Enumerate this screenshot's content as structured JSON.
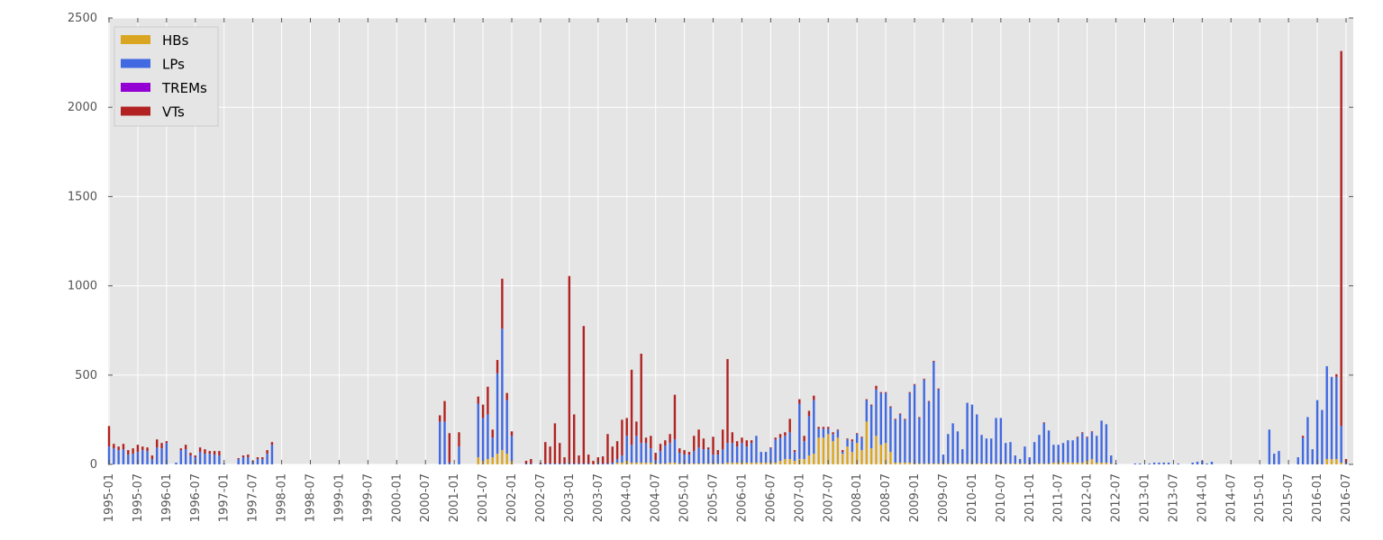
{
  "chart_data": {
    "type": "bar",
    "stacked": true,
    "grid": true,
    "legend_position": "top-left",
    "title": "",
    "xlabel": "",
    "ylabel": "",
    "ylim": [
      0,
      2500
    ],
    "yticks": [
      0,
      500,
      1000,
      1500,
      2000,
      2500
    ],
    "xlim": [
      "1995-01",
      "2016-07"
    ],
    "xticks": [
      "1995-01",
      "1995-07",
      "1996-01",
      "1996-07",
      "1997-01",
      "1997-07",
      "1998-01",
      "1998-07",
      "1999-01",
      "1999-07",
      "2000-01",
      "2000-07",
      "2001-01",
      "2001-07",
      "2002-01",
      "2002-07",
      "2003-01",
      "2003-07",
      "2004-01",
      "2004-07",
      "2005-01",
      "2005-07",
      "2006-01",
      "2006-07",
      "2007-01",
      "2007-07",
      "2008-01",
      "2008-07",
      "2009-01",
      "2009-07",
      "2010-01",
      "2010-07",
      "2011-01",
      "2011-07",
      "2012-01",
      "2012-07",
      "2013-01",
      "2013-07",
      "2014-01",
      "2014-07",
      "2015-01",
      "2015-07",
      "2016-01",
      "2016-07"
    ],
    "series": [
      {
        "name": "HBs",
        "color": "#daa520"
      },
      {
        "name": "LPs",
        "color": "#4169e1"
      },
      {
        "name": "TREMs",
        "color": "#9400d3"
      },
      {
        "name": "VTs",
        "color": "#b22222"
      }
    ],
    "data": [
      [
        "1995-01",
        0,
        100,
        0,
        115
      ],
      [
        "1995-02",
        0,
        90,
        0,
        25
      ],
      [
        "1995-03",
        0,
        80,
        0,
        20
      ],
      [
        "1995-04",
        0,
        85,
        0,
        30
      ],
      [
        "1995-05",
        0,
        55,
        0,
        25
      ],
      [
        "1995-06",
        0,
        60,
        0,
        30
      ],
      [
        "1995-07",
        0,
        70,
        0,
        40
      ],
      [
        "1995-08",
        0,
        80,
        0,
        20
      ],
      [
        "1995-09",
        0,
        75,
        0,
        20
      ],
      [
        "1995-10",
        0,
        30,
        0,
        20
      ],
      [
        "1995-11",
        0,
        95,
        0,
        45
      ],
      [
        "1995-12",
        0,
        90,
        0,
        30
      ],
      [
        "1996-01",
        0,
        120,
        0,
        10
      ],
      [
        "1996-03",
        0,
        10,
        0,
        0
      ],
      [
        "1996-04",
        0,
        80,
        0,
        10
      ],
      [
        "1996-05",
        0,
        85,
        0,
        25
      ],
      [
        "1996-06",
        0,
        50,
        0,
        15
      ],
      [
        "1996-07",
        0,
        40,
        0,
        10
      ],
      [
        "1996-08",
        0,
        70,
        0,
        25
      ],
      [
        "1996-09",
        0,
        60,
        0,
        25
      ],
      [
        "1996-10",
        0,
        60,
        0,
        15
      ],
      [
        "1996-11",
        0,
        55,
        0,
        20
      ],
      [
        "1996-12",
        0,
        50,
        0,
        25
      ],
      [
        "1997-01",
        0,
        5,
        0,
        0
      ],
      [
        "1997-04",
        0,
        30,
        0,
        5
      ],
      [
        "1997-05",
        0,
        40,
        0,
        10
      ],
      [
        "1997-06",
        0,
        40,
        0,
        15
      ],
      [
        "1997-07",
        0,
        15,
        0,
        5
      ],
      [
        "1997-08",
        0,
        30,
        0,
        10
      ],
      [
        "1997-09",
        0,
        30,
        0,
        10
      ],
      [
        "1997-10",
        0,
        60,
        0,
        20
      ],
      [
        "1997-11",
        0,
        110,
        0,
        15
      ],
      [
        "2000-10",
        0,
        240,
        0,
        35
      ],
      [
        "2000-11",
        0,
        240,
        0,
        115
      ],
      [
        "2000-12",
        0,
        10,
        0,
        165
      ],
      [
        "2001-02",
        0,
        100,
        0,
        80
      ],
      [
        "2001-06",
        40,
        300,
        0,
        40
      ],
      [
        "2001-07",
        20,
        240,
        0,
        75
      ],
      [
        "2001-08",
        30,
        250,
        0,
        155
      ],
      [
        "2001-09",
        40,
        110,
        0,
        45
      ],
      [
        "2001-10",
        60,
        450,
        0,
        75
      ],
      [
        "2001-11",
        80,
        680,
        0,
        280
      ],
      [
        "2001-12",
        60,
        300,
        0,
        40
      ],
      [
        "2002-01",
        20,
        140,
        0,
        25
      ],
      [
        "2002-04",
        0,
        5,
        0,
        15
      ],
      [
        "2002-05",
        0,
        5,
        0,
        25
      ],
      [
        "2002-07",
        0,
        5,
        0,
        5
      ],
      [
        "2002-08",
        0,
        5,
        0,
        120
      ],
      [
        "2002-09",
        0,
        5,
        0,
        95
      ],
      [
        "2002-10",
        0,
        5,
        0,
        225
      ],
      [
        "2002-11",
        0,
        5,
        0,
        115
      ],
      [
        "2002-12",
        0,
        5,
        0,
        35
      ],
      [
        "2003-01",
        0,
        5,
        0,
        1050
      ],
      [
        "2003-02",
        0,
        5,
        0,
        275
      ],
      [
        "2003-03",
        0,
        5,
        0,
        45
      ],
      [
        "2003-04",
        0,
        5,
        0,
        770
      ],
      [
        "2003-05",
        0,
        5,
        0,
        50
      ],
      [
        "2003-06",
        0,
        0,
        0,
        20
      ],
      [
        "2003-07",
        0,
        5,
        0,
        35
      ],
      [
        "2003-08",
        0,
        5,
        0,
        40
      ],
      [
        "2003-09",
        0,
        5,
        0,
        165
      ],
      [
        "2003-10",
        0,
        10,
        0,
        90
      ],
      [
        "2003-11",
        10,
        20,
        0,
        100
      ],
      [
        "2003-12",
        10,
        40,
        0,
        200
      ],
      [
        "2004-01",
        20,
        140,
        0,
        100
      ],
      [
        "2004-02",
        10,
        100,
        0,
        420
      ],
      [
        "2004-03",
        10,
        150,
        0,
        80
      ],
      [
        "2004-04",
        10,
        110,
        0,
        500
      ],
      [
        "2004-05",
        10,
        110,
        0,
        30
      ],
      [
        "2004-06",
        10,
        80,
        0,
        70
      ],
      [
        "2004-07",
        5,
        20,
        0,
        40
      ],
      [
        "2004-08",
        5,
        70,
        0,
        40
      ],
      [
        "2004-09",
        5,
        100,
        0,
        30
      ],
      [
        "2004-10",
        10,
        110,
        0,
        50
      ],
      [
        "2004-11",
        10,
        130,
        0,
        250
      ],
      [
        "2004-12",
        5,
        60,
        0,
        25
      ],
      [
        "2005-01",
        5,
        50,
        0,
        25
      ],
      [
        "2005-02",
        5,
        50,
        0,
        15
      ],
      [
        "2005-03",
        5,
        70,
        0,
        85
      ],
      [
        "2005-04",
        5,
        90,
        0,
        100
      ],
      [
        "2005-05",
        5,
        80,
        0,
        60
      ],
      [
        "2005-06",
        5,
        80,
        0,
        10
      ],
      [
        "2005-07",
        5,
        50,
        0,
        100
      ],
      [
        "2005-08",
        5,
        50,
        0,
        25
      ],
      [
        "2005-09",
        5,
        80,
        0,
        110
      ],
      [
        "2005-10",
        10,
        110,
        0,
        470
      ],
      [
        "2005-11",
        10,
        110,
        0,
        60
      ],
      [
        "2005-12",
        10,
        90,
        0,
        30
      ],
      [
        "2006-01",
        10,
        110,
        0,
        30
      ],
      [
        "2006-02",
        10,
        90,
        0,
        35
      ],
      [
        "2006-03",
        10,
        110,
        0,
        15
      ],
      [
        "2006-04",
        10,
        150,
        0,
        0
      ],
      [
        "2006-05",
        10,
        60,
        0,
        0
      ],
      [
        "2006-06",
        10,
        60,
        0,
        0
      ],
      [
        "2006-07",
        10,
        80,
        0,
        5
      ],
      [
        "2006-08",
        10,
        130,
        0,
        10
      ],
      [
        "2006-09",
        20,
        130,
        0,
        20
      ],
      [
        "2006-10",
        30,
        130,
        0,
        20
      ],
      [
        "2006-11",
        30,
        150,
        0,
        75
      ],
      [
        "2006-12",
        20,
        50,
        0,
        10
      ],
      [
        "2007-01",
        30,
        310,
        0,
        25
      ],
      [
        "2007-02",
        30,
        100,
        0,
        30
      ],
      [
        "2007-03",
        50,
        220,
        0,
        30
      ],
      [
        "2007-04",
        60,
        300,
        0,
        25
      ],
      [
        "2007-05",
        150,
        50,
        0,
        10
      ],
      [
        "2007-06",
        150,
        50,
        0,
        10
      ],
      [
        "2007-07",
        170,
        30,
        0,
        10
      ],
      [
        "2007-08",
        130,
        40,
        0,
        10
      ],
      [
        "2007-09",
        150,
        40,
        0,
        5
      ],
      [
        "2007-10",
        60,
        10,
        0,
        10
      ],
      [
        "2007-11",
        100,
        40,
        0,
        5
      ],
      [
        "2007-12",
        70,
        60,
        0,
        10
      ],
      [
        "2008-01",
        120,
        50,
        0,
        5
      ],
      [
        "2008-02",
        80,
        70,
        0,
        5
      ],
      [
        "2008-03",
        240,
        120,
        0,
        5
      ],
      [
        "2008-04",
        90,
        240,
        0,
        5
      ],
      [
        "2008-05",
        160,
        260,
        0,
        20
      ],
      [
        "2008-06",
        110,
        290,
        0,
        5
      ],
      [
        "2008-07",
        120,
        280,
        0,
        5
      ],
      [
        "2008-08",
        70,
        250,
        0,
        5
      ],
      [
        "2008-09",
        10,
        240,
        0,
        5
      ],
      [
        "2008-10",
        10,
        270,
        0,
        5
      ],
      [
        "2008-11",
        10,
        240,
        0,
        5
      ],
      [
        "2008-12",
        10,
        390,
        0,
        5
      ],
      [
        "2009-01",
        5,
        440,
        0,
        5
      ],
      [
        "2009-02",
        5,
        255,
        0,
        5
      ],
      [
        "2009-03",
        5,
        470,
        0,
        5
      ],
      [
        "2009-04",
        5,
        345,
        0,
        5
      ],
      [
        "2009-05",
        5,
        570,
        0,
        5
      ],
      [
        "2009-06",
        5,
        415,
        0,
        5
      ],
      [
        "2009-07",
        5,
        50,
        0,
        0
      ],
      [
        "2009-08",
        5,
        165,
        0,
        0
      ],
      [
        "2009-09",
        5,
        225,
        0,
        0
      ],
      [
        "2009-10",
        5,
        180,
        0,
        0
      ],
      [
        "2009-11",
        5,
        80,
        0,
        0
      ],
      [
        "2009-12",
        5,
        340,
        0,
        0
      ],
      [
        "2010-01",
        5,
        330,
        0,
        0
      ],
      [
        "2010-02",
        5,
        275,
        0,
        0
      ],
      [
        "2010-03",
        5,
        160,
        0,
        0
      ],
      [
        "2010-04",
        5,
        140,
        0,
        0
      ],
      [
        "2010-05",
        5,
        140,
        0,
        0
      ],
      [
        "2010-06",
        5,
        255,
        0,
        0
      ],
      [
        "2010-07",
        5,
        255,
        0,
        0
      ],
      [
        "2010-08",
        5,
        115,
        0,
        0
      ],
      [
        "2010-09",
        5,
        120,
        0,
        0
      ],
      [
        "2010-10",
        5,
        45,
        0,
        0
      ],
      [
        "2010-11",
        5,
        25,
        0,
        0
      ],
      [
        "2010-12",
        5,
        95,
        0,
        0
      ],
      [
        "2011-01",
        0,
        40,
        0,
        0
      ],
      [
        "2011-02",
        5,
        120,
        0,
        0
      ],
      [
        "2011-03",
        5,
        160,
        0,
        0
      ],
      [
        "2011-04",
        5,
        225,
        0,
        5
      ],
      [
        "2011-05",
        5,
        185,
        0,
        0
      ],
      [
        "2011-06",
        10,
        100,
        0,
        0
      ],
      [
        "2011-07",
        10,
        100,
        0,
        0
      ],
      [
        "2011-08",
        10,
        110,
        0,
        0
      ],
      [
        "2011-09",
        10,
        125,
        0,
        0
      ],
      [
        "2011-10",
        10,
        125,
        0,
        0
      ],
      [
        "2011-11",
        10,
        140,
        0,
        5
      ],
      [
        "2011-12",
        10,
        165,
        0,
        5
      ],
      [
        "2012-01",
        20,
        130,
        0,
        5
      ],
      [
        "2012-02",
        30,
        150,
        0,
        5
      ],
      [
        "2012-03",
        10,
        150,
        0,
        0
      ],
      [
        "2012-04",
        10,
        235,
        0,
        0
      ],
      [
        "2012-05",
        10,
        215,
        0,
        0
      ],
      [
        "2012-06",
        5,
        45,
        0,
        0
      ],
      [
        "2012-07",
        0,
        5,
        0,
        0
      ],
      [
        "2012-11",
        0,
        5,
        0,
        0
      ],
      [
        "2012-12",
        0,
        5,
        0,
        0
      ],
      [
        "2013-02",
        0,
        5,
        0,
        0
      ],
      [
        "2013-03",
        0,
        10,
        0,
        0
      ],
      [
        "2013-04",
        0,
        10,
        0,
        0
      ],
      [
        "2013-05",
        0,
        10,
        0,
        0
      ],
      [
        "2013-06",
        0,
        10,
        0,
        0
      ],
      [
        "2013-08",
        0,
        5,
        0,
        0
      ],
      [
        "2013-11",
        0,
        10,
        0,
        0
      ],
      [
        "2013-12",
        0,
        15,
        0,
        0
      ],
      [
        "2014-01",
        0,
        20,
        0,
        0
      ],
      [
        "2014-02",
        0,
        5,
        0,
        0
      ],
      [
        "2014-03",
        0,
        15,
        0,
        0
      ],
      [
        "2015-03",
        0,
        195,
        0,
        0
      ],
      [
        "2015-04",
        0,
        60,
        0,
        0
      ],
      [
        "2015-05",
        0,
        75,
        0,
        0
      ],
      [
        "2015-09",
        0,
        40,
        0,
        0
      ],
      [
        "2015-10",
        0,
        150,
        0,
        10
      ],
      [
        "2015-11",
        0,
        265,
        0,
        0
      ],
      [
        "2015-12",
        0,
        85,
        0,
        0
      ],
      [
        "2016-01",
        0,
        360,
        0,
        0
      ],
      [
        "2016-02",
        0,
        305,
        0,
        0
      ],
      [
        "2016-03",
        30,
        520,
        0,
        0
      ],
      [
        "2016-04",
        30,
        460,
        0,
        0
      ],
      [
        "2016-05",
        30,
        460,
        0,
        15
      ],
      [
        "2016-06",
        10,
        205,
        0,
        2100
      ],
      [
        "2016-07",
        0,
        10,
        0,
        20
      ]
    ]
  }
}
